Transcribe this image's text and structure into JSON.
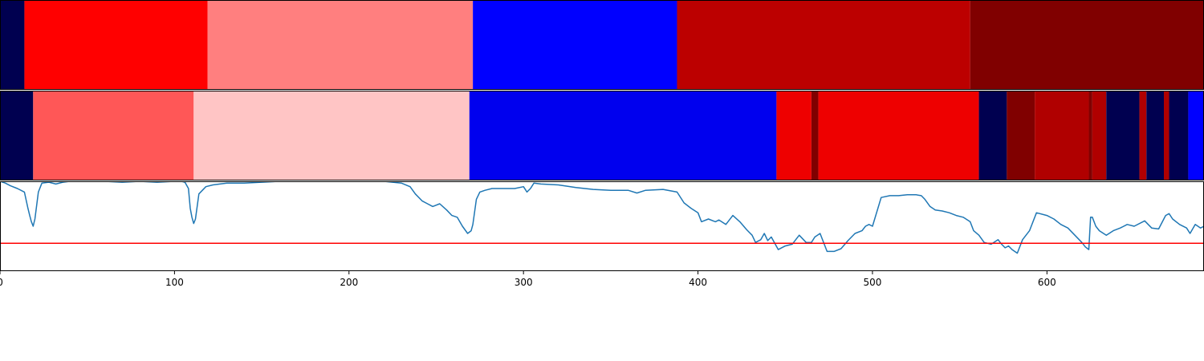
{
  "chart_data": [
    {
      "type": "heatmap",
      "panel": "segmentation-row-1",
      "colormap": "seismic",
      "x_range": [
        0,
        690
      ],
      "segments": [
        {
          "start": 0,
          "end": 14,
          "color": "#000050"
        },
        {
          "start": 14,
          "end": 119,
          "color": "#ff0000"
        },
        {
          "start": 119,
          "end": 271,
          "color": "#ff7f7f"
        },
        {
          "start": 271,
          "end": 388,
          "color": "#0000ff"
        },
        {
          "start": 388,
          "end": 556,
          "color": "#bc0000"
        },
        {
          "start": 556,
          "end": 690,
          "color": "#800000"
        }
      ]
    },
    {
      "type": "heatmap",
      "panel": "segmentation-row-2",
      "colormap": "seismic",
      "x_range": [
        0,
        690
      ],
      "segments": [
        {
          "start": 0,
          "end": 19,
          "color": "#000050"
        },
        {
          "start": 19,
          "end": 111,
          "color": "#ff5757"
        },
        {
          "start": 111,
          "end": 269,
          "color": "#ffc5c5"
        },
        {
          "start": 269,
          "end": 445,
          "color": "#0000ee"
        },
        {
          "start": 445,
          "end": 465,
          "color": "#ee0000"
        },
        {
          "start": 465,
          "end": 469,
          "color": "#800000"
        },
        {
          "start": 469,
          "end": 561,
          "color": "#ee0000"
        },
        {
          "start": 561,
          "end": 577,
          "color": "#000050"
        },
        {
          "start": 577,
          "end": 593,
          "color": "#800000"
        },
        {
          "start": 593,
          "end": 624,
          "color": "#b00000"
        },
        {
          "start": 624,
          "end": 626,
          "color": "#800000"
        },
        {
          "start": 626,
          "end": 634,
          "color": "#b00000"
        },
        {
          "start": 634,
          "end": 653,
          "color": "#000050"
        },
        {
          "start": 653,
          "end": 657,
          "color": "#b00000"
        },
        {
          "start": 657,
          "end": 667,
          "color": "#000050"
        },
        {
          "start": 667,
          "end": 670,
          "color": "#b00000"
        },
        {
          "start": 670,
          "end": 681,
          "color": "#000050"
        },
        {
          "start": 681,
          "end": 690,
          "color": "#0000ff"
        }
      ]
    },
    {
      "type": "line",
      "panel": "signal",
      "xlim": [
        0,
        690
      ],
      "ylim": [
        0,
        1
      ],
      "xticks": [
        "0",
        "100",
        "200",
        "300",
        "400",
        "500",
        "600"
      ],
      "tick_values": [
        0,
        100,
        200,
        300,
        400,
        500,
        600
      ],
      "series_color": "#1f77b4",
      "threshold": {
        "y": 0.31,
        "color": "#ff0000"
      },
      "series": [
        {
          "x": [
            0,
            3,
            6,
            10,
            14,
            16,
            17,
            18,
            19,
            20,
            22,
            24,
            28,
            32,
            36,
            40,
            50,
            60,
            70,
            80,
            90,
            100,
            104,
            106,
            108,
            109,
            110,
            111,
            112,
            114,
            118,
            122,
            126,
            130,
            140,
            150,
            160,
            170,
            180,
            190,
            200,
            210,
            220,
            230,
            235,
            238,
            242,
            245,
            248,
            252,
            256,
            259,
            262,
            265,
            268,
            270,
            271,
            273,
            275,
            278,
            282,
            288,
            295,
            300,
            302,
            304,
            306,
            310,
            320,
            330,
            340,
            350,
            360,
            365,
            370,
            380,
            388,
            392,
            396,
            400,
            402,
            406,
            410,
            412,
            416,
            420,
            424,
            428,
            431,
            433,
            436,
            438,
            440,
            442,
            446,
            450,
            454,
            458,
            462,
            465,
            467,
            470,
            474,
            478,
            482,
            486,
            490,
            494,
            496,
            498,
            500,
            505,
            510,
            515,
            520,
            525,
            528,
            530,
            533,
            536,
            540,
            544,
            548,
            552,
            556,
            558,
            561,
            564,
            568,
            572,
            574,
            576,
            578,
            580,
            583,
            586,
            590,
            594,
            600,
            604,
            608,
            612,
            616,
            620,
            622,
            624,
            625,
            626,
            628,
            630,
            634,
            638,
            642,
            646,
            650,
            656,
            660,
            664,
            668,
            670,
            672,
            676,
            680,
            682,
            685,
            688,
            690
          ],
          "y": [
            1.0,
            0.98,
            0.95,
            0.92,
            0.88,
            0.7,
            0.62,
            0.55,
            0.5,
            0.58,
            0.88,
            0.98,
            0.99,
            0.97,
            0.99,
            1.0,
            1.0,
            1.0,
            0.99,
            1.0,
            0.99,
            1.0,
            1.0,
            0.99,
            0.92,
            0.7,
            0.6,
            0.53,
            0.58,
            0.86,
            0.94,
            0.96,
            0.97,
            0.98,
            0.98,
            0.99,
            1.0,
            1.0,
            1.0,
            1.0,
            1.0,
            1.0,
            1.0,
            0.98,
            0.94,
            0.86,
            0.78,
            0.75,
            0.72,
            0.75,
            0.68,
            0.62,
            0.6,
            0.5,
            0.42,
            0.45,
            0.52,
            0.8,
            0.88,
            0.9,
            0.92,
            0.92,
            0.92,
            0.94,
            0.88,
            0.92,
            0.98,
            0.97,
            0.96,
            0.93,
            0.91,
            0.9,
            0.9,
            0.87,
            0.9,
            0.91,
            0.88,
            0.76,
            0.7,
            0.65,
            0.55,
            0.58,
            0.55,
            0.57,
            0.52,
            0.62,
            0.55,
            0.46,
            0.4,
            0.32,
            0.35,
            0.42,
            0.34,
            0.38,
            0.24,
            0.28,
            0.3,
            0.4,
            0.32,
            0.32,
            0.38,
            0.42,
            0.22,
            0.22,
            0.25,
            0.34,
            0.42,
            0.45,
            0.5,
            0.52,
            0.5,
            0.82,
            0.84,
            0.84,
            0.85,
            0.85,
            0.84,
            0.8,
            0.72,
            0.68,
            0.67,
            0.65,
            0.62,
            0.6,
            0.55,
            0.45,
            0.4,
            0.32,
            0.3,
            0.35,
            0.3,
            0.26,
            0.28,
            0.24,
            0.2,
            0.35,
            0.45,
            0.65,
            0.62,
            0.58,
            0.52,
            0.48,
            0.4,
            0.32,
            0.27,
            0.24,
            0.6,
            0.6,
            0.5,
            0.45,
            0.4,
            0.45,
            0.48,
            0.52,
            0.5,
            0.56,
            0.48,
            0.47,
            0.62,
            0.64,
            0.58,
            0.52,
            0.48,
            0.42,
            0.52,
            0.48,
            0.5
          ]
        }
      ]
    }
  ]
}
